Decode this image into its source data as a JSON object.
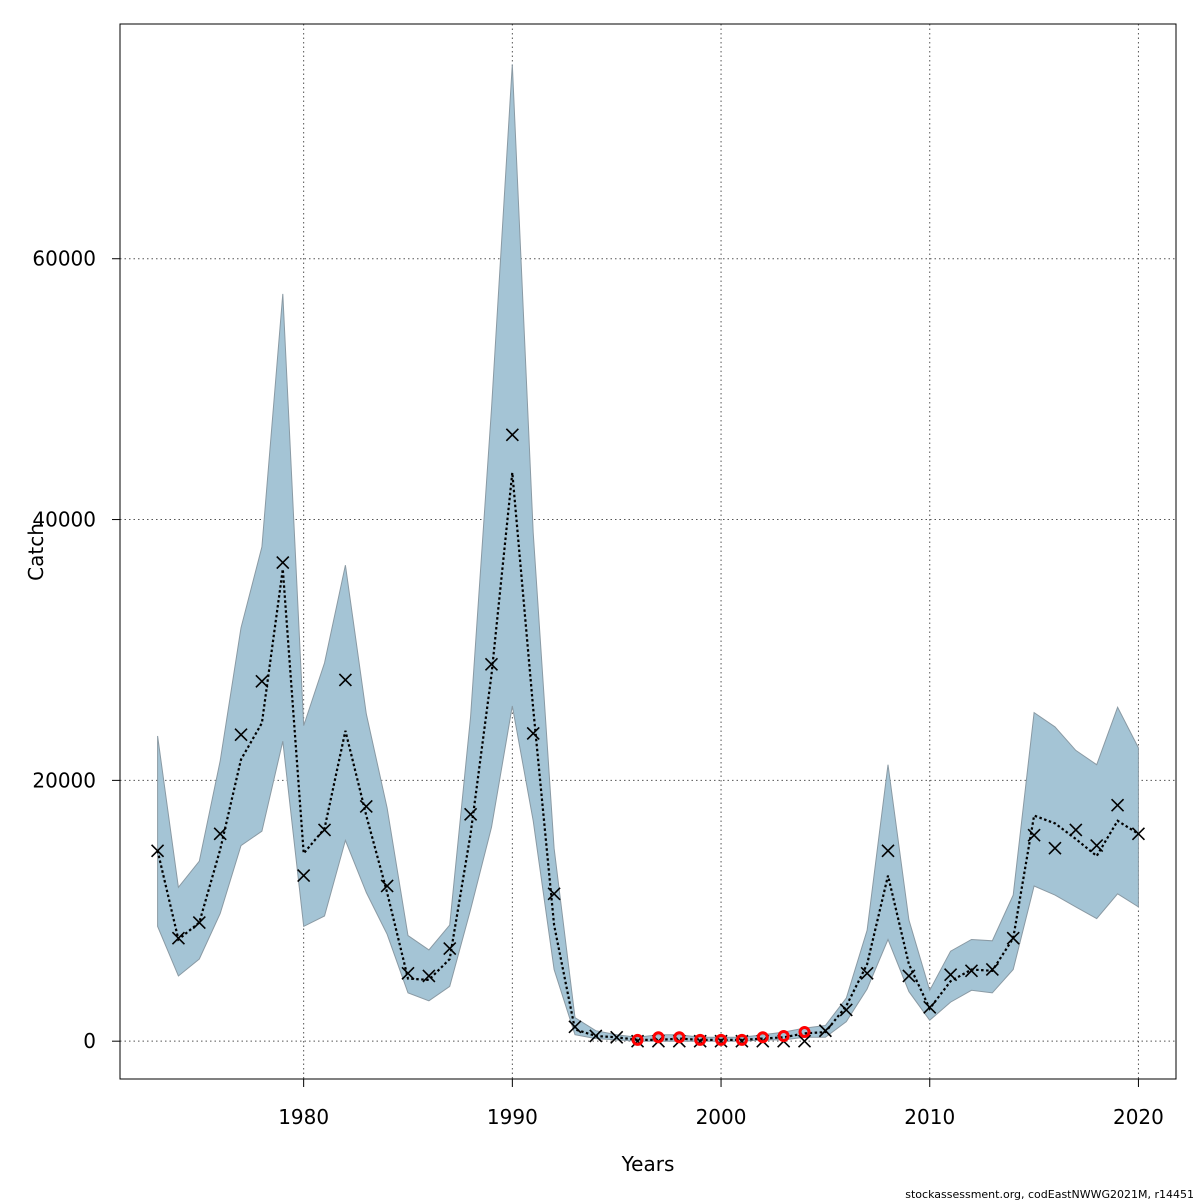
{
  "chart_data": {
    "type": "line",
    "xlabel": "Years",
    "ylabel": "Catch",
    "xlim": [
      1971.2,
      2021.8
    ],
    "ylim": [
      -2900,
      78000
    ],
    "x_ticks": [
      1980,
      1990,
      2000,
      2010,
      2020
    ],
    "y_ticks": [
      0,
      20000,
      40000,
      60000
    ],
    "grid": true,
    "years": [
      1973,
      1974,
      1975,
      1976,
      1977,
      1978,
      1979,
      1980,
      1981,
      1982,
      1983,
      1984,
      1985,
      1986,
      1987,
      1988,
      1989,
      1990,
      1991,
      1992,
      1993,
      1994,
      1995,
      1996,
      1997,
      1998,
      1999,
      2000,
      2001,
      2002,
      2003,
      2004,
      2005,
      2006,
      2007,
      2008,
      2009,
      2010,
      2011,
      2012,
      2013,
      2014,
      2015,
      2016,
      2017,
      2018,
      2019,
      2020
    ],
    "series": [
      {
        "kind": "band",
        "color": "#a4c4d5",
        "upper": [
          23400,
          11800,
          13800,
          21500,
          31700,
          37900,
          57300,
          24200,
          29000,
          36500,
          25100,
          17900,
          8100,
          7000,
          8900,
          24900,
          48500,
          74900,
          39000,
          14800,
          1800,
          800,
          500,
          300,
          500,
          500,
          300,
          300,
          300,
          500,
          700,
          1000,
          1200,
          3300,
          8500,
          21200,
          9300,
          3900,
          6900,
          7800,
          7700,
          11200,
          25200,
          24100,
          22300,
          21200,
          25600,
          22500
        ],
        "lower": [
          8800,
          5000,
          6300,
          9800,
          15000,
          16100,
          23000,
          8800,
          9600,
          15400,
          11400,
          8200,
          3700,
          3100,
          4200,
          10100,
          16400,
          25700,
          16900,
          5500,
          500,
          200,
          100,
          0,
          0,
          0,
          0,
          0,
          0,
          100,
          100,
          300,
          300,
          1500,
          4000,
          7800,
          3800,
          1600,
          3000,
          3900,
          3700,
          5500,
          11900,
          11200,
          10300,
          9400,
          11300,
          10300
        ]
      },
      {
        "kind": "estimate",
        "color": "#000000",
        "values": [
          14600,
          7800,
          9100,
          14700,
          21600,
          24400,
          36200,
          14400,
          16300,
          23800,
          17300,
          11400,
          4800,
          4700,
          6300,
          15900,
          28100,
          43600,
          25500,
          8900,
          900,
          400,
          300,
          100,
          100,
          200,
          100,
          100,
          100,
          200,
          300,
          600,
          700,
          2700,
          5900,
          12700,
          5900,
          2500,
          4600,
          5500,
          5400,
          7900,
          17300,
          16700,
          15500,
          14200,
          16900,
          15900
        ]
      },
      {
        "kind": "observed",
        "color": "#000000",
        "values": [
          14600,
          7900,
          9100,
          15900,
          23500,
          27600,
          36700,
          12700,
          16200,
          27700,
          18000,
          11900,
          5200,
          5000,
          7100,
          17400,
          28900,
          46500,
          23600,
          11300,
          1100,
          400,
          300,
          0,
          0,
          0,
          0,
          0,
          0,
          0,
          0,
          0,
          800,
          2400,
          5200,
          14600,
          5000,
          2600,
          5100,
          5400,
          5500,
          7900,
          15800,
          14800,
          16200,
          15000,
          18100,
          15900
        ]
      },
      {
        "kind": "predicted-highlight",
        "color": "#ff0000",
        "years": [
          1996,
          1997,
          1998,
          1999,
          2000,
          2001,
          2002,
          2003,
          2004
        ],
        "values": [
          100,
          300,
          300,
          100,
          100,
          100,
          300,
          400,
          700
        ]
      }
    ]
  },
  "footer": "stockassessment.org, codEastNWWG2021M, r14451"
}
